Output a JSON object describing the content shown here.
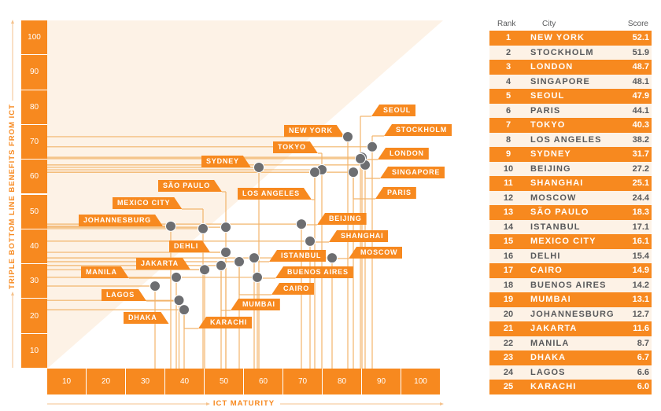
{
  "colors": {
    "accent": "#f7891f",
    "cream": "#fdf2e6",
    "dot": "#6d6e71",
    "line": "#f2b56c",
    "axis_arrow": "#f5c28c",
    "text_dark": "#58595b"
  },
  "chart_data": [
    {
      "type": "scatter",
      "title": "",
      "xlabel": "ICT MATURITY",
      "ylabel": "TRIPLE BOTTOM LINE BENEFITS FROM ICT",
      "xlim": [
        0,
        100
      ],
      "ylim": [
        0,
        100
      ],
      "x_ticks": [
        "10",
        "20",
        "30",
        "40",
        "50",
        "60",
        "70",
        "80",
        "90",
        "100"
      ],
      "y_ticks": [
        "100",
        "90",
        "80",
        "70",
        "60",
        "50",
        "40",
        "30",
        "20",
        "10"
      ],
      "grid": false,
      "legend": "none",
      "points": [
        {
          "label": "NEW YORK",
          "x": 76.4,
          "y": 66.6
        },
        {
          "label": "STOCKHOLM",
          "x": 82.6,
          "y": 63.7
        },
        {
          "label": "LONDON",
          "x": 80.0,
          "y": 60.7
        },
        {
          "label": "SINGAPORE",
          "x": 80.8,
          "y": 58.5
        },
        {
          "label": "SEOUL",
          "x": 79.6,
          "y": 60.3
        },
        {
          "label": "PARIS",
          "x": 77.8,
          "y": 56.4
        },
        {
          "label": "TOKYO",
          "x": 69.8,
          "y": 57.1
        },
        {
          "label": "LOS ANGELES",
          "x": 68.0,
          "y": 56.4
        },
        {
          "label": "SYDNEY",
          "x": 53.8,
          "y": 57.8
        },
        {
          "label": "BEIJING",
          "x": 64.6,
          "y": 41.5
        },
        {
          "label": "SHANGHAI",
          "x": 66.8,
          "y": 36.6
        },
        {
          "label": "MOSCOW",
          "x": 72.4,
          "y": 31.8
        },
        {
          "label": "SÃO PAULO",
          "x": 45.4,
          "y": 40.6
        },
        {
          "label": "ISTANBUL",
          "x": 52.6,
          "y": 31.8
        },
        {
          "label": "MEXICO CITY",
          "x": 39.6,
          "y": 40.2
        },
        {
          "label": "DEHLI",
          "x": 45.4,
          "y": 33.4
        },
        {
          "label": "CAIRO",
          "x": 48.8,
          "y": 30.7
        },
        {
          "label": "BUENOS AIRES",
          "x": 53.4,
          "y": 26.2
        },
        {
          "label": "MUMBAI",
          "x": 44.2,
          "y": 29.6
        },
        {
          "label": "JOHANNESBURG",
          "x": 31.4,
          "y": 40.9
        },
        {
          "label": "JAKARTA",
          "x": 40.0,
          "y": 28.4
        },
        {
          "label": "MANILA",
          "x": 32.8,
          "y": 26.2
        },
        {
          "label": "DHAKA",
          "x": 27.4,
          "y": 23.7
        },
        {
          "label": "LAGOS",
          "x": 33.5,
          "y": 19.6
        },
        {
          "label": "KARACHI",
          "x": 34.8,
          "y": 16.9
        }
      ]
    },
    {
      "type": "table",
      "columns": [
        "Rank",
        "City",
        "Score"
      ],
      "rows": [
        {
          "rank": "1",
          "city": "NEW YORK",
          "score": "52.1"
        },
        {
          "rank": "2",
          "city": "STOCKHOLM",
          "score": "51.9"
        },
        {
          "rank": "3",
          "city": "LONDON",
          "score": "48.7"
        },
        {
          "rank": "4",
          "city": "SINGAPORE",
          "score": "48.1"
        },
        {
          "rank": "5",
          "city": "SEOUL",
          "score": "47.9"
        },
        {
          "rank": "6",
          "city": "PARIS",
          "score": "44.1"
        },
        {
          "rank": "7",
          "city": "TOKYO",
          "score": "40.3"
        },
        {
          "rank": "8",
          "city": "LOS ANGELES",
          "score": "38.2"
        },
        {
          "rank": "9",
          "city": "SYDNEY",
          "score": "31.7"
        },
        {
          "rank": "10",
          "city": "BEIJING",
          "score": "27.2"
        },
        {
          "rank": "11",
          "city": "SHANGHAI",
          "score": "25.1"
        },
        {
          "rank": "12",
          "city": "MOSCOW",
          "score": "24.4"
        },
        {
          "rank": "13",
          "city": "SÃO PAULO",
          "score": "18.3"
        },
        {
          "rank": "14",
          "city": "ISTANBUL",
          "score": "17.1"
        },
        {
          "rank": "15",
          "city": "MEXICO CITY",
          "score": "16.1"
        },
        {
          "rank": "16",
          "city": "DELHI",
          "score": "15.4"
        },
        {
          "rank": "17",
          "city": "CAIRO",
          "score": "14.9"
        },
        {
          "rank": "18",
          "city": "BUENOS AIRES",
          "score": "14.2"
        },
        {
          "rank": "19",
          "city": "MUMBAI",
          "score": "13.1"
        },
        {
          "rank": "20",
          "city": "JOHANNESBURG",
          "score": "12.7"
        },
        {
          "rank": "21",
          "city": "JAKARTA",
          "score": "11.6"
        },
        {
          "rank": "22",
          "city": "MANILA",
          "score": "8.7"
        },
        {
          "rank": "23",
          "city": "DHAKA",
          "score": "6.7"
        },
        {
          "rank": "24",
          "city": "LAGOS",
          "score": "6.6"
        },
        {
          "rank": "25",
          "city": "KARACHI",
          "score": "6.0"
        }
      ]
    }
  ]
}
